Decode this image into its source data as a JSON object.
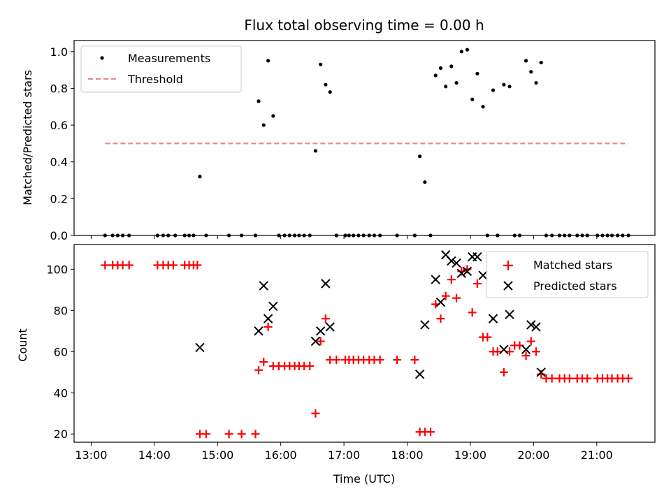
{
  "chart_data": {
    "type": "scatter",
    "title": "Flux total observing time = 0.00 h",
    "xlabel": "Time (UTC)",
    "x_ticks": [
      "13:00",
      "14:00",
      "15:00",
      "16:00",
      "17:00",
      "18:00",
      "19:00",
      "20:00",
      "21:00"
    ],
    "x_tick_hours": [
      13,
      14,
      15,
      16,
      17,
      18,
      19,
      20,
      21
    ],
    "xlim_hours": [
      12.73,
      21.92
    ],
    "panels": [
      {
        "ylabel": "Matched/Predicted stars",
        "ylim": [
          0,
          1.06
        ],
        "yticks": [
          0.0,
          0.2,
          0.4,
          0.6,
          0.8,
          1.0
        ],
        "ytick_labels": [
          "0.0",
          "0.2",
          "0.4",
          "0.6",
          "0.8",
          "1.0"
        ],
        "legend": {
          "placement": "upper-left",
          "entries": [
            "Measurements",
            "Threshold"
          ]
        },
        "series": [
          {
            "name": "Measurements",
            "marker": "dot",
            "color": "#000000",
            "points": [
              [
                13.22,
                0
              ],
              [
                13.34,
                0
              ],
              [
                13.42,
                0
              ],
              [
                13.5,
                0
              ],
              [
                13.6,
                0
              ],
              [
                14.05,
                0
              ],
              [
                14.14,
                0
              ],
              [
                14.22,
                0
              ],
              [
                14.33,
                0
              ],
              [
                14.48,
                0
              ],
              [
                14.55,
                0
              ],
              [
                14.62,
                0
              ],
              [
                14.72,
                0.32
              ],
              [
                14.82,
                0
              ],
              [
                15.18,
                0
              ],
              [
                15.38,
                0
              ],
              [
                15.6,
                0
              ],
              [
                15.65,
                0.73
              ],
              [
                15.73,
                0.6
              ],
              [
                15.8,
                0.95
              ],
              [
                15.88,
                0.65
              ],
              [
                15.97,
                0
              ],
              [
                16.06,
                0
              ],
              [
                16.14,
                0
              ],
              [
                16.22,
                0
              ],
              [
                16.29,
                0
              ],
              [
                16.37,
                0
              ],
              [
                16.46,
                0
              ],
              [
                16.55,
                0.46
              ],
              [
                16.63,
                0.93
              ],
              [
                16.71,
                0.82
              ],
              [
                16.78,
                0.78
              ],
              [
                16.88,
                0
              ],
              [
                17.02,
                0
              ],
              [
                17.08,
                0
              ],
              [
                17.15,
                0
              ],
              [
                17.23,
                0
              ],
              [
                17.31,
                0
              ],
              [
                17.4,
                0
              ],
              [
                17.48,
                0
              ],
              [
                17.57,
                0
              ],
              [
                17.84,
                0
              ],
              [
                18.12,
                0
              ],
              [
                18.2,
                0.43
              ],
              [
                18.28,
                0.29
              ],
              [
                18.37,
                0
              ],
              [
                18.45,
                0.87
              ],
              [
                18.53,
                0.91
              ],
              [
                18.61,
                0.81
              ],
              [
                18.7,
                0.92
              ],
              [
                18.78,
                0.83
              ],
              [
                18.86,
                1.0
              ],
              [
                18.95,
                1.01
              ],
              [
                19.03,
                0.74
              ],
              [
                19.11,
                0.88
              ],
              [
                19.2,
                0.7
              ],
              [
                19.27,
                0
              ],
              [
                19.36,
                0.79
              ],
              [
                19.43,
                0
              ],
              [
                19.53,
                0.82
              ],
              [
                19.62,
                0.81
              ],
              [
                19.7,
                0
              ],
              [
                19.78,
                0
              ],
              [
                19.88,
                0.95
              ],
              [
                19.96,
                0.89
              ],
              [
                20.04,
                0.83
              ],
              [
                20.12,
                0.94
              ],
              [
                20.2,
                0
              ],
              [
                20.29,
                0
              ],
              [
                20.41,
                0
              ],
              [
                20.49,
                0
              ],
              [
                20.57,
                0
              ],
              [
                20.69,
                0
              ],
              [
                20.77,
                0
              ],
              [
                20.85,
                0
              ],
              [
                21.01,
                0
              ],
              [
                21.09,
                0
              ],
              [
                21.17,
                0
              ],
              [
                21.24,
                0
              ],
              [
                21.33,
                0
              ],
              [
                21.41,
                0
              ],
              [
                21.5,
                0
              ]
            ]
          },
          {
            "name": "Threshold",
            "style": "dashed-line",
            "color": "#f08080",
            "points": [
              [
                13.22,
                0.5
              ],
              [
                21.5,
                0.5
              ]
            ]
          }
        ]
      },
      {
        "ylabel": "Count",
        "ylim": [
          16,
          112
        ],
        "yticks": [
          20,
          40,
          60,
          80,
          100
        ],
        "ytick_labels": [
          "20",
          "40",
          "60",
          "80",
          "100"
        ],
        "legend": {
          "placement": "upper-right",
          "entries": [
            "Matched stars",
            "Predicted stars"
          ]
        },
        "series": [
          {
            "name": "Matched stars",
            "marker": "plus",
            "color": "#ff0000",
            "points": [
              [
                13.22,
                102
              ],
              [
                13.34,
                102
              ],
              [
                13.42,
                102
              ],
              [
                13.5,
                102
              ],
              [
                13.6,
                102
              ],
              [
                14.05,
                102
              ],
              [
                14.14,
                102
              ],
              [
                14.22,
                102
              ],
              [
                14.3,
                102
              ],
              [
                14.48,
                102
              ],
              [
                14.55,
                102
              ],
              [
                14.62,
                102
              ],
              [
                14.68,
                102
              ],
              [
                14.72,
                20
              ],
              [
                14.82,
                20
              ],
              [
                15.18,
                20
              ],
              [
                15.38,
                20
              ],
              [
                15.6,
                20
              ],
              [
                15.65,
                51
              ],
              [
                15.73,
                55
              ],
              [
                15.8,
                72
              ],
              [
                15.88,
                53
              ],
              [
                15.97,
                53
              ],
              [
                16.06,
                53
              ],
              [
                16.14,
                53
              ],
              [
                16.22,
                53
              ],
              [
                16.29,
                53
              ],
              [
                16.37,
                53
              ],
              [
                16.46,
                53
              ],
              [
                16.55,
                30
              ],
              [
                16.63,
                65
              ],
              [
                16.71,
                76
              ],
              [
                16.78,
                56
              ],
              [
                16.88,
                56
              ],
              [
                17.02,
                56
              ],
              [
                17.08,
                56
              ],
              [
                17.15,
                56
              ],
              [
                17.23,
                56
              ],
              [
                17.31,
                56
              ],
              [
                17.4,
                56
              ],
              [
                17.48,
                56
              ],
              [
                17.57,
                56
              ],
              [
                17.84,
                56
              ],
              [
                18.12,
                56
              ],
              [
                18.2,
                21
              ],
              [
                18.28,
                21
              ],
              [
                18.37,
                21
              ],
              [
                18.45,
                83
              ],
              [
                18.53,
                76
              ],
              [
                18.61,
                87
              ],
              [
                18.7,
                95
              ],
              [
                18.78,
                86
              ],
              [
                18.86,
                99
              ],
              [
                18.95,
                100
              ],
              [
                19.03,
                79
              ],
              [
                19.11,
                93
              ],
              [
                19.2,
                67
              ],
              [
                19.27,
                67
              ],
              [
                19.36,
                60
              ],
              [
                19.43,
                60
              ],
              [
                19.53,
                50
              ],
              [
                19.62,
                60
              ],
              [
                19.7,
                63
              ],
              [
                19.78,
                63
              ],
              [
                19.88,
                58
              ],
              [
                19.96,
                65
              ],
              [
                20.04,
                60
              ],
              [
                20.12,
                49
              ],
              [
                20.2,
                47
              ],
              [
                20.29,
                47
              ],
              [
                20.41,
                47
              ],
              [
                20.49,
                47
              ],
              [
                20.57,
                47
              ],
              [
                20.69,
                47
              ],
              [
                20.77,
                47
              ],
              [
                20.85,
                47
              ],
              [
                21.01,
                47
              ],
              [
                21.09,
                47
              ],
              [
                21.17,
                47
              ],
              [
                21.24,
                47
              ],
              [
                21.33,
                47
              ],
              [
                21.41,
                47
              ],
              [
                21.5,
                47
              ]
            ]
          },
          {
            "name": "Predicted stars",
            "marker": "x",
            "color": "#000000",
            "points": [
              [
                14.72,
                62
              ],
              [
                15.65,
                70
              ],
              [
                15.73,
                92
              ],
              [
                15.8,
                76
              ],
              [
                15.88,
                82
              ],
              [
                16.55,
                65
              ],
              [
                16.63,
                70
              ],
              [
                16.71,
                93
              ],
              [
                16.78,
                72
              ],
              [
                18.2,
                49
              ],
              [
                18.28,
                73
              ],
              [
                18.45,
                95
              ],
              [
                18.53,
                84
              ],
              [
                18.61,
                107
              ],
              [
                18.7,
                104
              ],
              [
                18.78,
                103
              ],
              [
                18.86,
                98
              ],
              [
                18.95,
                99
              ],
              [
                19.03,
                106
              ],
              [
                19.11,
                106
              ],
              [
                19.2,
                97
              ],
              [
                19.36,
                76
              ],
              [
                19.53,
                61
              ],
              [
                19.62,
                78
              ],
              [
                19.88,
                61
              ],
              [
                19.96,
                73
              ],
              [
                20.04,
                72
              ],
              [
                20.12,
                50
              ]
            ]
          }
        ]
      }
    ]
  },
  "colors": {
    "measurement": "#000000",
    "threshold": "#f08080",
    "matched": "#ff0000",
    "predicted": "#000000"
  }
}
